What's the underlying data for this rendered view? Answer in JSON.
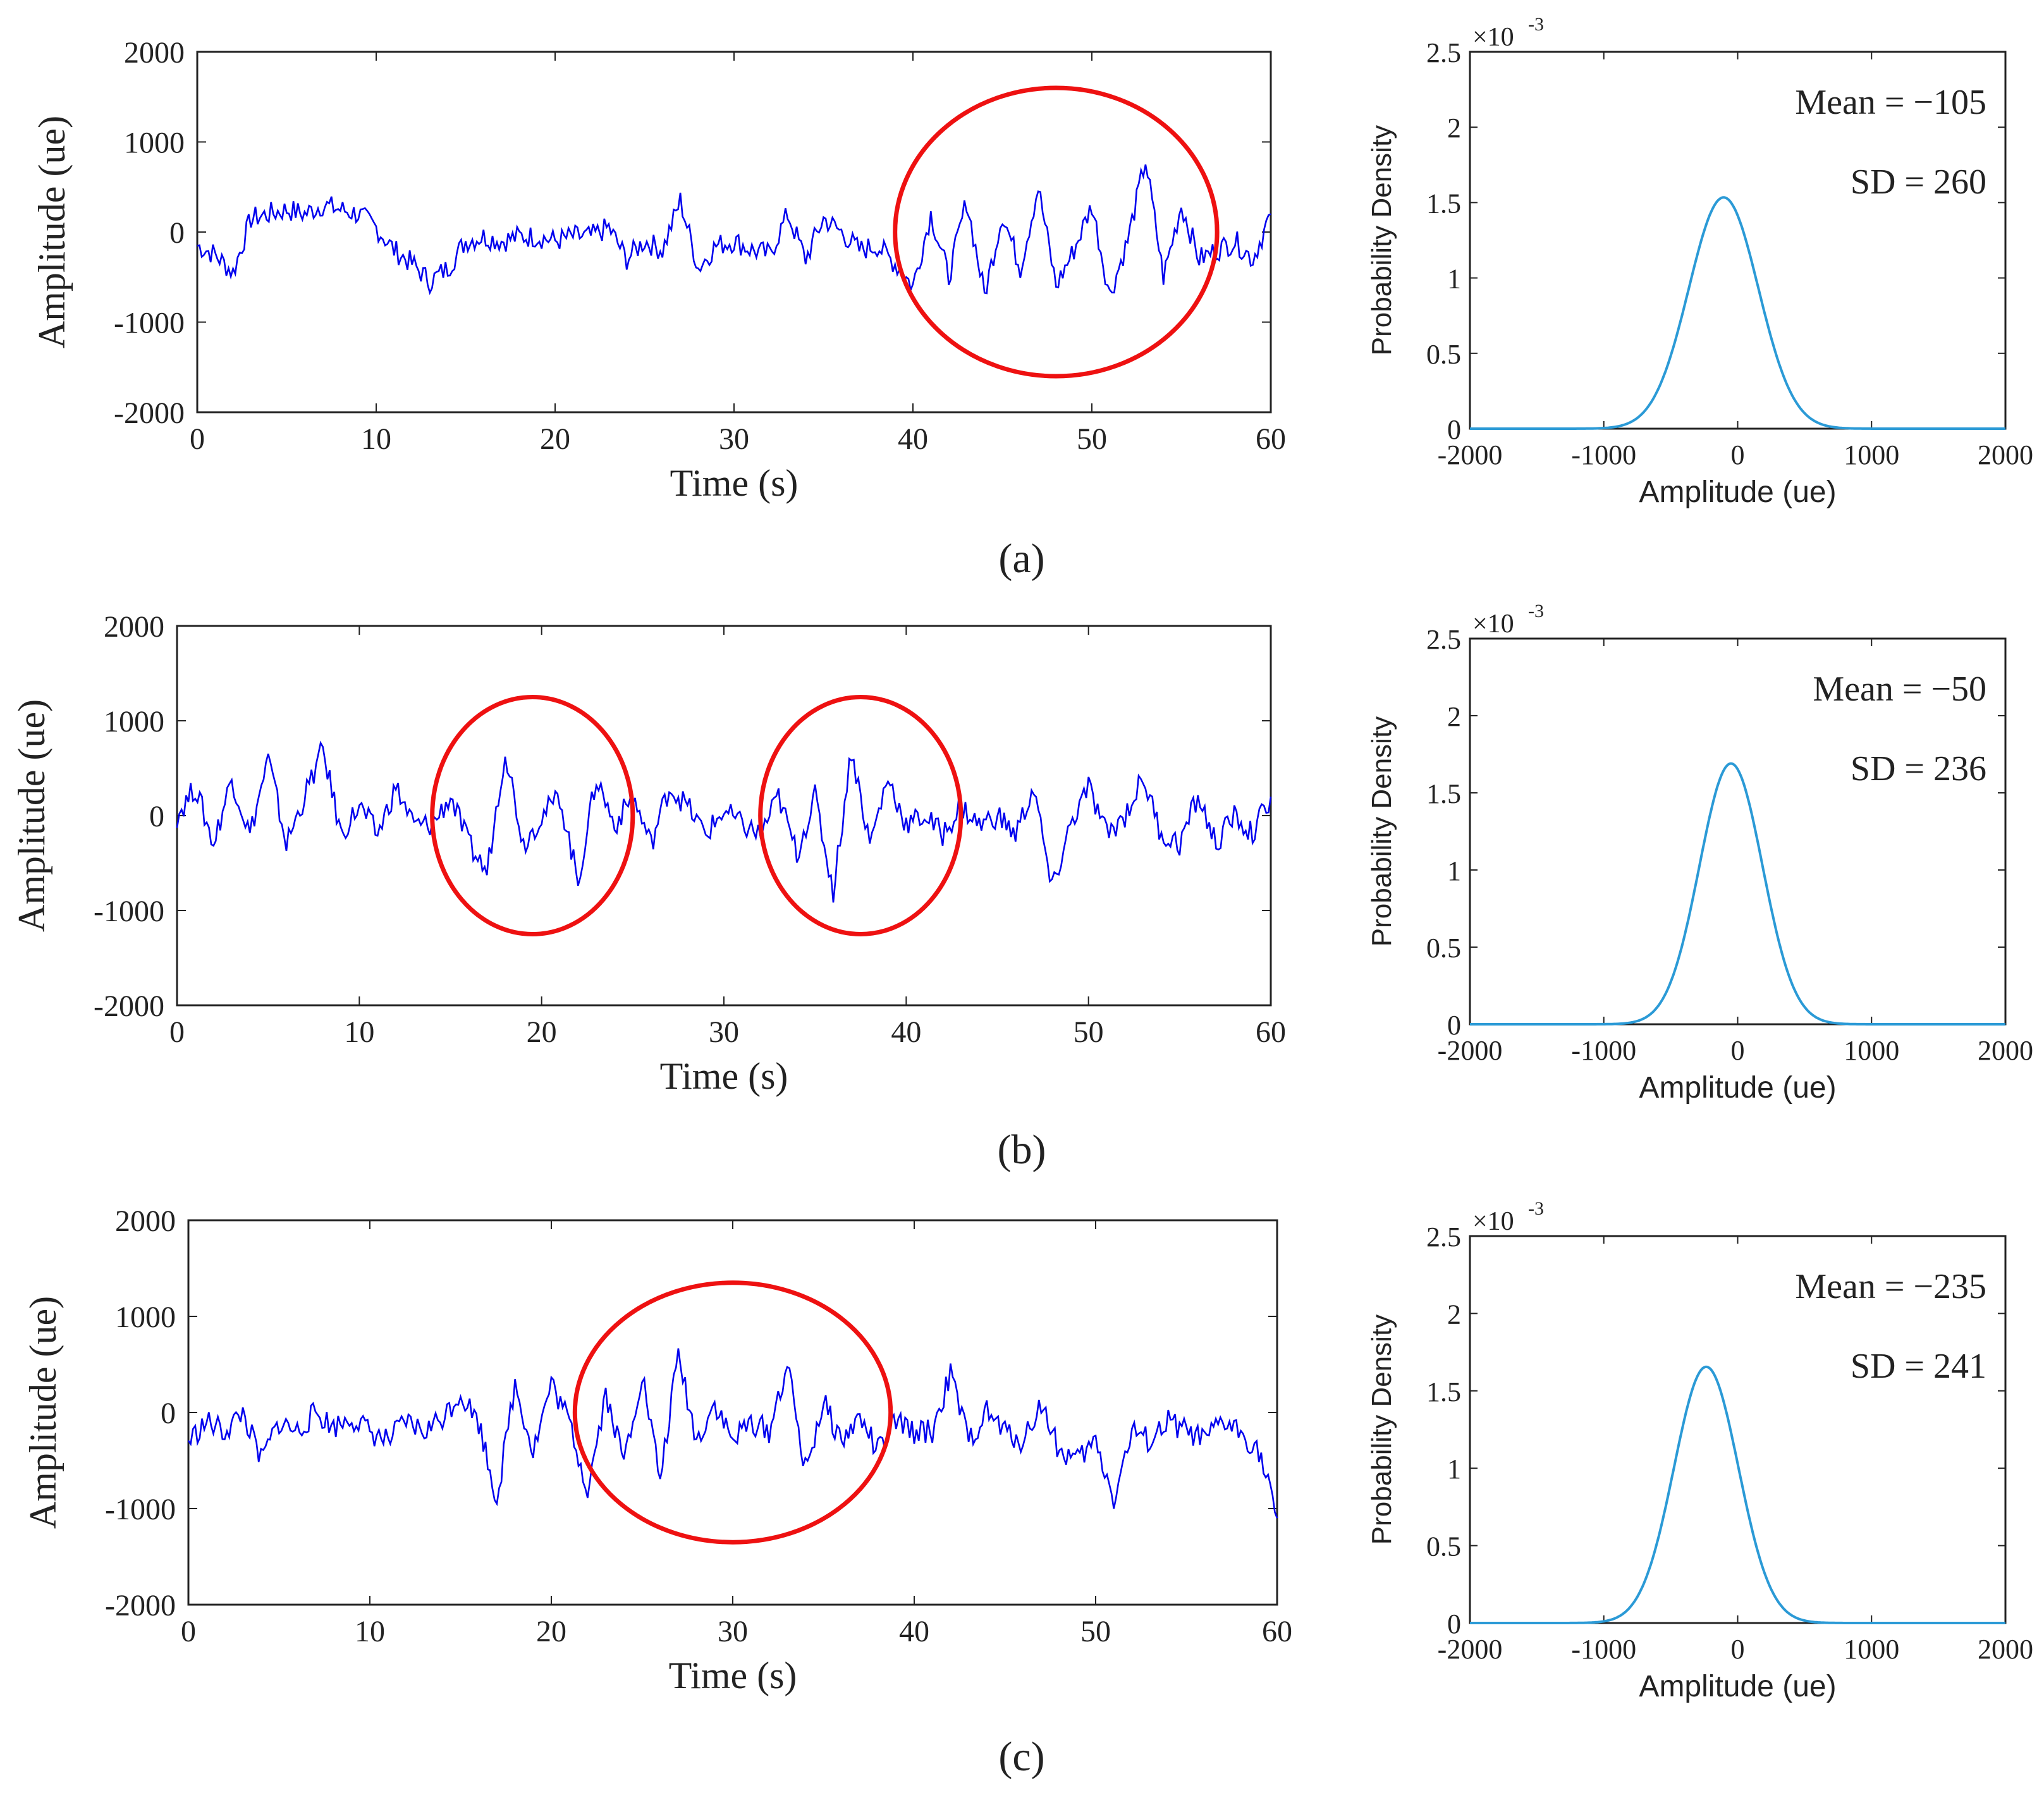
{
  "colors": {
    "signal": "#0000ee",
    "pdf": "#2b9ad6",
    "highlight": "#ee1111",
    "axis": "#222222"
  },
  "chart_data": [
    {
      "id": "a",
      "caption": "(a)",
      "time": {
        "type": "line",
        "xlabel": "Time (s)",
        "ylabel": "Amplitude (ue)",
        "xlim": [
          0,
          60
        ],
        "ylim": [
          -2000,
          2000
        ],
        "xticks": [
          "0",
          "10",
          "20",
          "30",
          "40",
          "50",
          "60"
        ],
        "yticks": [
          "-2000",
          "-1000",
          "0",
          "1000",
          "2000"
        ],
        "x": [
          0,
          1,
          2,
          3,
          4,
          5,
          6,
          7,
          8,
          9,
          10,
          11,
          12,
          13,
          14,
          15,
          16,
          17,
          18,
          19,
          20,
          21,
          22,
          23,
          24,
          25,
          26,
          27,
          28,
          29,
          30,
          31,
          32,
          33,
          34,
          35,
          36,
          37,
          38,
          39,
          40,
          41,
          42,
          43,
          44,
          45,
          46,
          47,
          48,
          49,
          50,
          51,
          52,
          53,
          54,
          55,
          56,
          57,
          58,
          59,
          60
        ],
        "y": [
          -150,
          -250,
          -450,
          150,
          200,
          250,
          200,
          300,
          250,
          200,
          50,
          -200,
          -350,
          -550,
          -400,
          -100,
          -50,
          -100,
          -50,
          -50,
          -100,
          -50,
          -50,
          50,
          -300,
          -100,
          -200,
          350,
          -400,
          -150,
          -100,
          -200,
          -250,
          200,
          -300,
          150,
          0,
          -200,
          -150,
          -350,
          -600,
          200,
          -500,
          350,
          -700,
          200,
          -400,
          500,
          -600,
          -200,
          300,
          -700,
          -100,
          800,
          -500,
          300,
          -300,
          -200,
          -100,
          -300,
          200
        ],
        "highlights": [
          {
            "center_time": 48,
            "center_amplitude": 0,
            "half_width_s": 9,
            "half_height_amplitude": 1600
          }
        ]
      },
      "pdf": {
        "type": "line",
        "xlabel": "Amplitude (ue)",
        "ylabel": "Probability Density",
        "xlim": [
          -2000,
          2000
        ],
        "ylim": [
          0,
          0.0025
        ],
        "xticks": [
          "-2000",
          "-1000",
          "0",
          "1000",
          "2000"
        ],
        "yticks": [
          "0",
          "0.5",
          "1",
          "1.5",
          "2",
          "2.5"
        ],
        "scale_label": "×10",
        "scale_exp": "-3",
        "mean": -105,
        "sd": 260,
        "mean_label": "Mean = −105",
        "sd_label": "SD = 260"
      }
    },
    {
      "id": "b",
      "caption": "(b)",
      "time": {
        "type": "line",
        "xlabel": "Time (s)",
        "ylabel": "Amplitude (ue)",
        "xlim": [
          0,
          60
        ],
        "ylim": [
          -2000,
          2000
        ],
        "xticks": [
          "0",
          "10",
          "20",
          "30",
          "40",
          "50",
          "60"
        ],
        "yticks": [
          "-2000",
          "-1000",
          "0",
          "1000",
          "2000"
        ],
        "x": [
          0,
          1,
          2,
          3,
          4,
          5,
          6,
          7,
          8,
          9,
          10,
          11,
          12,
          13,
          14,
          15,
          16,
          17,
          18,
          19,
          20,
          21,
          22,
          23,
          24,
          25,
          26,
          27,
          28,
          29,
          30,
          31,
          32,
          33,
          34,
          35,
          36,
          37,
          38,
          39,
          40,
          41,
          42,
          43,
          44,
          45,
          46,
          47,
          48,
          49,
          50,
          51,
          52,
          53,
          54,
          55,
          56,
          57,
          58,
          59,
          60
        ],
        "y": [
          0,
          300,
          -300,
          400,
          -200,
          600,
          -300,
          200,
          700,
          -200,
          100,
          -200,
          300,
          -100,
          -100,
          200,
          -300,
          -600,
          700,
          -300,
          0,
          200,
          -700,
          400,
          -100,
          200,
          -300,
          300,
          100,
          -200,
          50,
          -100,
          -200,
          200,
          -400,
          200,
          -800,
          700,
          -300,
          400,
          -100,
          0,
          -200,
          100,
          -100,
          0,
          -200,
          300,
          -800,
          -100,
          300,
          -200,
          0,
          400,
          -200,
          -300,
          200,
          -300,
          0,
          -200,
          200
        ],
        "highlights": [
          {
            "center_time": 19.5,
            "center_amplitude": 0,
            "half_width_s": 5.5,
            "half_height_amplitude": 1250
          },
          {
            "center_time": 37.5,
            "center_amplitude": 0,
            "half_width_s": 5.5,
            "half_height_amplitude": 1250
          }
        ]
      },
      "pdf": {
        "type": "line",
        "xlabel": "Amplitude (ue)",
        "ylabel": "Probability Density",
        "xlim": [
          -2000,
          2000
        ],
        "ylim": [
          0,
          0.0025
        ],
        "xticks": [
          "-2000",
          "-1000",
          "0",
          "1000",
          "2000"
        ],
        "yticks": [
          "0",
          "0.5",
          "1",
          "1.5",
          "2",
          "2.5"
        ],
        "scale_label": "×10",
        "scale_exp": "-3",
        "mean": -50,
        "sd": 236,
        "mean_label": "Mean = −50",
        "sd_label": "SD = 236"
      }
    },
    {
      "id": "c",
      "caption": "(c)",
      "time": {
        "type": "line",
        "xlabel": "Time (s)",
        "ylabel": "Amplitude (ue)",
        "xlim": [
          0,
          60
        ],
        "ylim": [
          -2000,
          2000
        ],
        "xticks": [
          "0",
          "10",
          "20",
          "30",
          "40",
          "50",
          "60"
        ],
        "yticks": [
          "-2000",
          "-1000",
          "0",
          "1000",
          "2000"
        ],
        "x": [
          0,
          1,
          2,
          3,
          4,
          5,
          6,
          7,
          8,
          9,
          10,
          11,
          12,
          13,
          14,
          15,
          16,
          17,
          18,
          19,
          20,
          21,
          22,
          23,
          24,
          25,
          26,
          27,
          28,
          29,
          30,
          31,
          32,
          33,
          34,
          35,
          36,
          37,
          38,
          39,
          40,
          41,
          42,
          43,
          44,
          45,
          46,
          47,
          48,
          49,
          50,
          51,
          52,
          53,
          54,
          55,
          56,
          57,
          58,
          59,
          60
        ],
        "y": [
          -300,
          -100,
          -200,
          0,
          -500,
          -100,
          -200,
          0,
          -150,
          -50,
          -200,
          -300,
          -100,
          -200,
          -50,
          200,
          -100,
          -900,
          300,
          -400,
          300,
          -100,
          -800,
          200,
          -500,
          400,
          -700,
          600,
          -300,
          100,
          -300,
          -100,
          -200,
          500,
          -600,
          100,
          -300,
          -50,
          -400,
          -100,
          -200,
          -200,
          400,
          -300,
          0,
          -200,
          -300,
          100,
          -400,
          -500,
          -300,
          -900,
          -200,
          -300,
          -100,
          -200,
          -300,
          -100,
          -200,
          -400,
          -1100
        ],
        "highlights": [
          {
            "center_time": 30,
            "center_amplitude": 0,
            "half_width_s": 8.7,
            "half_height_amplitude": 1350
          }
        ]
      },
      "pdf": {
        "type": "line",
        "xlabel": "Amplitude (ue)",
        "ylabel": "Probability Density",
        "xlim": [
          -2000,
          2000
        ],
        "ylim": [
          0,
          0.0025
        ],
        "xticks": [
          "-2000",
          "-1000",
          "0",
          "1000",
          "2000"
        ],
        "yticks": [
          "0",
          "0.5",
          "1",
          "1.5",
          "2",
          "2.5"
        ],
        "scale_label": "×10",
        "scale_exp": "-3",
        "mean": -235,
        "sd": 241,
        "mean_label": "Mean = −235",
        "sd_label": "SD = 241"
      }
    }
  ]
}
